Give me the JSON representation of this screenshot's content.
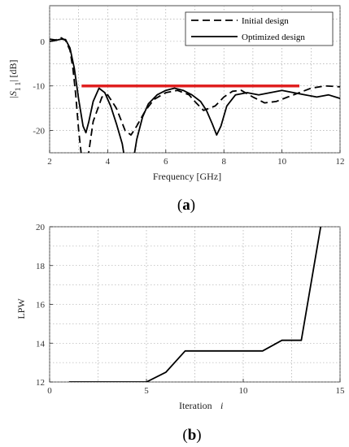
{
  "chart_data": [
    {
      "type": "line",
      "panel_label": "(a)",
      "xlabel": "Frequency [GHz]",
      "ylabel": "|S11| [dB]",
      "xlim": [
        2,
        12
      ],
      "ylim": [
        -25,
        8
      ],
      "xticks": [
        2,
        4,
        6,
        8,
        10,
        12
      ],
      "yticks": [
        0,
        -10,
        -20
      ],
      "grid": "dotted",
      "legend_position": "top-right",
      "series": [
        {
          "name": "Initial design",
          "style": "dashed",
          "color": "#000000",
          "x": [
            2.0,
            2.2,
            2.4,
            2.55,
            2.7,
            2.8,
            2.9,
            3.0,
            3.1,
            3.2,
            3.3,
            3.5,
            3.8,
            4.0,
            4.3,
            4.6,
            4.8,
            5.0,
            5.3,
            5.6,
            6.0,
            6.4,
            6.8,
            7.0,
            7.3,
            7.7,
            8.0,
            8.3,
            8.6,
            9.0,
            9.4,
            9.8,
            10.2,
            10.6,
            11.0,
            11.5,
            12.0
          ],
          "y": [
            0.5,
            0.3,
            0.8,
            0.2,
            -2.0,
            -6.0,
            -12.0,
            -20.0,
            -26.0,
            -30.0,
            -27.0,
            -18.0,
            -12.5,
            -12.0,
            -15.0,
            -20.0,
            -21.0,
            -19.0,
            -15.5,
            -13.0,
            -11.5,
            -11.0,
            -12.0,
            -13.5,
            -15.5,
            -14.5,
            -12.5,
            -11.2,
            -11.0,
            -12.5,
            -13.8,
            -13.5,
            -12.5,
            -11.5,
            -10.5,
            -10.0,
            -10.2
          ]
        },
        {
          "name": "Optimized design",
          "style": "solid",
          "color": "#000000",
          "x": [
            2.0,
            2.2,
            2.4,
            2.55,
            2.7,
            2.85,
            3.0,
            3.15,
            3.25,
            3.35,
            3.5,
            3.7,
            3.9,
            4.1,
            4.3,
            4.5,
            4.6,
            4.7,
            4.85,
            5.0,
            5.2,
            5.4,
            5.7,
            6.0,
            6.3,
            6.6,
            6.9,
            7.2,
            7.4,
            7.6,
            7.75,
            7.9,
            8.1,
            8.4,
            8.8,
            9.2,
            9.6,
            10.0,
            10.4,
            10.8,
            11.2,
            11.6,
            12.0
          ],
          "y": [
            0.0,
            0.2,
            0.5,
            0.4,
            -1.5,
            -6.0,
            -13.0,
            -19.0,
            -20.5,
            -18.0,
            -13.5,
            -10.5,
            -11.5,
            -14.5,
            -18.5,
            -23.0,
            -27.0,
            -30.0,
            -28.0,
            -22.0,
            -17.0,
            -14.0,
            -12.0,
            -11.0,
            -10.5,
            -11.0,
            -12.0,
            -13.5,
            -15.5,
            -18.5,
            -21.0,
            -19.0,
            -14.5,
            -12.0,
            -11.5,
            -12.0,
            -11.5,
            -11.0,
            -11.5,
            -12.0,
            -12.5,
            -12.0,
            -12.8
          ]
        },
        {
          "name": "",
          "style": "threshold",
          "color": "#e02020",
          "x": [
            3.1,
            10.6
          ],
          "y": [
            -10,
            -10
          ]
        }
      ]
    },
    {
      "type": "line",
      "panel_label": "(b)",
      "xlabel": "Iteration",
      "xlabel_symbol": "i",
      "ylabel": "LPW",
      "xlim": [
        0,
        15
      ],
      "ylim": [
        12,
        20
      ],
      "xticks": [
        0,
        5,
        10,
        15
      ],
      "yticks": [
        12,
        14,
        16,
        18,
        20
      ],
      "grid": "dotted",
      "series": [
        {
          "name": "",
          "style": "solid",
          "color": "#000000",
          "x": [
            1,
            2,
            3,
            4,
            5,
            6,
            7,
            8,
            9,
            10,
            11,
            12,
            13,
            14
          ],
          "y": [
            12.0,
            12.0,
            12.0,
            12.0,
            12.0,
            12.5,
            13.6,
            13.6,
            13.6,
            13.6,
            13.6,
            14.15,
            14.15,
            20.0
          ]
        }
      ]
    }
  ]
}
